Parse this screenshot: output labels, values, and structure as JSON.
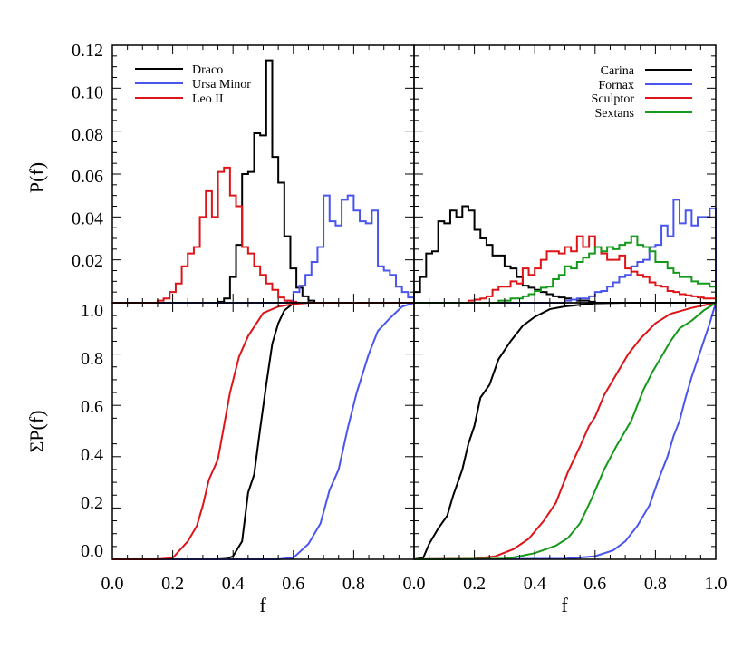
{
  "colors": {
    "black": "#000000",
    "blue": "#4a55ee",
    "red": "#dd1418",
    "green": "#15991a"
  },
  "chart_data": [
    {
      "type": "bar",
      "style": "step-histogram",
      "panel": "top-left",
      "xlabel": "",
      "ylabel": "P(f)",
      "xlim": [
        0,
        1
      ],
      "ylim": [
        0,
        0.12
      ],
      "yticks": [
        "0.02",
        "0.04",
        "0.06",
        "0.08",
        "0.10",
        "0.12"
      ],
      "legend": "top-left",
      "bin_width": 0.02,
      "series": [
        {
          "name": "Draco",
          "color": "#000000",
          "bin_start": 0.35,
          "values": [
            0.0005,
            0.002,
            0.012,
            0.027,
            0.06,
            0.061,
            0.079,
            0.078,
            0.113,
            0.068,
            0.056,
            0.031,
            0.016,
            0.007,
            0.003,
            0.001
          ]
        },
        {
          "name": "Ursa Minor",
          "color": "#4a55ee",
          "bin_start": 0.58,
          "values": [
            0.001,
            0.005,
            0.008,
            0.013,
            0.019,
            0.026,
            0.05,
            0.038,
            0.036,
            0.048,
            0.05,
            0.043,
            0.038,
            0.037,
            0.043,
            0.017,
            0.015,
            0.013,
            0.0075,
            0.005,
            0.0025
          ]
        },
        {
          "name": "Leo II",
          "color": "#dd1418",
          "bin_start": 0.15,
          "values": [
            0.001,
            0.002,
            0.005,
            0.009,
            0.017,
            0.023,
            0.026,
            0.04,
            0.052,
            0.04,
            0.061,
            0.063,
            0.05,
            0.045,
            0.026,
            0.023,
            0.017,
            0.013,
            0.009,
            0.006,
            0.0025,
            0.001,
            0.0005
          ]
        }
      ]
    },
    {
      "type": "bar",
      "style": "step-histogram",
      "panel": "top-right",
      "xlabel": "",
      "ylabel": "",
      "xlim": [
        0,
        1
      ],
      "ylim": [
        0,
        0.12
      ],
      "legend": "top-right",
      "bin_width": 0.02,
      "series": [
        {
          "name": "Carina",
          "color": "#000000",
          "bin_start": 0.0,
          "values": [
            0.005,
            0.012,
            0.023,
            0.024,
            0.038,
            0.037,
            0.043,
            0.04,
            0.045,
            0.043,
            0.034,
            0.03,
            0.027,
            0.022,
            0.022,
            0.017,
            0.016,
            0.012,
            0.008,
            0.007,
            0.006,
            0.005,
            0.004,
            0.003,
            0.0025,
            0.002,
            0.0015,
            0.001,
            0.001,
            0.0005
          ]
        },
        {
          "name": "Fornax",
          "color": "#4a55ee",
          "bin_start": 0.5,
          "values": [
            0.001,
            0.0015,
            0.002,
            0.002,
            0.003,
            0.005,
            0.0055,
            0.0075,
            0.0095,
            0.012,
            0.013,
            0.017,
            0.019,
            0.02,
            0.026,
            0.027,
            0.036,
            0.031,
            0.048,
            0.037,
            0.043,
            0.036,
            0.04,
            0.04,
            0.044
          ]
        },
        {
          "name": "Sculptor",
          "color": "#dd1418",
          "bin_start": 0.18,
          "values": [
            0.001,
            0.0015,
            0.002,
            0.003,
            0.006,
            0.0075,
            0.0075,
            0.01,
            0.009,
            0.016,
            0.013,
            0.016,
            0.02,
            0.024,
            0.024,
            0.023,
            0.026,
            0.024,
            0.031,
            0.026,
            0.031,
            0.026,
            0.023,
            0.02,
            0.02,
            0.022,
            0.016,
            0.0145,
            0.013,
            0.012,
            0.0095,
            0.008,
            0.0075,
            0.0055,
            0.005,
            0.004,
            0.0035,
            0.003,
            0.0025,
            0.002,
            0.002
          ]
        },
        {
          "name": "Sextans",
          "color": "#15991a",
          "bin_start": 0.28,
          "values": [
            0.001,
            0.001,
            0.002,
            0.002,
            0.003,
            0.004,
            0.0055,
            0.007,
            0.0075,
            0.011,
            0.013,
            0.017,
            0.016,
            0.019,
            0.021,
            0.023,
            0.026,
            0.024,
            0.026,
            0.025,
            0.027,
            0.028,
            0.031,
            0.027,
            0.026,
            0.024,
            0.019,
            0.019,
            0.016,
            0.014,
            0.012,
            0.012,
            0.01,
            0.009,
            0.009,
            0.0075
          ]
        }
      ]
    },
    {
      "type": "line",
      "panel": "bottom-left",
      "xlabel": "f",
      "ylabel": "ΣP(f)",
      "xlim": [
        0,
        1
      ],
      "ylim": [
        0,
        1
      ],
      "xticks": [
        "0.0",
        "0.2",
        "0.4",
        "0.6",
        "0.8"
      ],
      "yticks": [
        "0.0",
        "0.2",
        "0.4",
        "0.6",
        "0.8",
        "1.0"
      ],
      "series": [
        {
          "name": "Draco",
          "color": "#000000",
          "x": [
            0.0,
            0.35,
            0.38,
            0.4,
            0.43,
            0.45,
            0.47,
            0.49,
            0.51,
            0.53,
            0.55,
            0.57,
            0.6,
            0.65,
            1.0
          ],
          "y": [
            0,
            0,
            0.002,
            0.012,
            0.07,
            0.26,
            0.33,
            0.51,
            0.68,
            0.84,
            0.92,
            0.97,
            0.998,
            1,
            1
          ]
        },
        {
          "name": "Ursa Minor",
          "color": "#4a55ee",
          "x": [
            0.0,
            0.55,
            0.6,
            0.65,
            0.69,
            0.72,
            0.75,
            0.78,
            0.81,
            0.85,
            0.88,
            0.92,
            0.96,
            1.0
          ],
          "y": [
            0,
            0,
            0.006,
            0.06,
            0.14,
            0.27,
            0.35,
            0.51,
            0.65,
            0.8,
            0.89,
            0.94,
            0.985,
            1
          ]
        },
        {
          "name": "Leo II",
          "color": "#dd1418",
          "x": [
            0.0,
            0.15,
            0.2,
            0.25,
            0.28,
            0.3,
            0.32,
            0.35,
            0.37,
            0.39,
            0.42,
            0.45,
            0.5,
            0.55,
            0.6,
            0.65,
            1.0
          ],
          "y": [
            0,
            0,
            0.005,
            0.07,
            0.13,
            0.21,
            0.31,
            0.39,
            0.52,
            0.65,
            0.79,
            0.87,
            0.96,
            0.985,
            0.995,
            1,
            1
          ]
        }
      ]
    },
    {
      "type": "line",
      "panel": "bottom-right",
      "xlabel": "f",
      "ylabel": "",
      "xlim": [
        0,
        1
      ],
      "ylim": [
        0,
        1
      ],
      "xticks": [
        "0.0",
        "0.2",
        "0.4",
        "0.6",
        "0.8",
        "1.0"
      ],
      "series": [
        {
          "name": "Carina",
          "color": "#000000",
          "x": [
            0.0,
            0.03,
            0.05,
            0.08,
            0.11,
            0.13,
            0.16,
            0.18,
            0.2,
            0.22,
            0.25,
            0.28,
            0.32,
            0.36,
            0.4,
            0.45,
            0.5,
            0.6,
            0.7,
            1.0
          ],
          "y": [
            0,
            0.005,
            0.06,
            0.12,
            0.17,
            0.25,
            0.35,
            0.45,
            0.52,
            0.63,
            0.68,
            0.78,
            0.85,
            0.91,
            0.945,
            0.975,
            0.986,
            0.998,
            1,
            1
          ]
        },
        {
          "name": "Fornax",
          "color": "#4a55ee",
          "x": [
            0.0,
            0.5,
            0.6,
            0.66,
            0.7,
            0.74,
            0.78,
            0.81,
            0.84,
            0.86,
            0.88,
            0.9,
            0.92,
            0.94,
            0.96,
            0.98,
            1.0
          ],
          "y": [
            0,
            0.002,
            0.012,
            0.035,
            0.07,
            0.13,
            0.21,
            0.31,
            0.4,
            0.48,
            0.54,
            0.63,
            0.71,
            0.78,
            0.85,
            0.92,
            1
          ]
        },
        {
          "name": "Sculptor",
          "color": "#dd1418",
          "x": [
            0.0,
            0.2,
            0.27,
            0.33,
            0.38,
            0.43,
            0.47,
            0.51,
            0.55,
            0.58,
            0.6,
            0.63,
            0.67,
            0.71,
            0.75,
            0.8,
            0.85,
            0.92,
            1.0
          ],
          "y": [
            0,
            0.002,
            0.012,
            0.04,
            0.08,
            0.15,
            0.22,
            0.34,
            0.44,
            0.52,
            0.555,
            0.64,
            0.72,
            0.8,
            0.86,
            0.92,
            0.957,
            0.98,
            1
          ]
        },
        {
          "name": "Sextans",
          "color": "#15991a",
          "x": [
            0.0,
            0.3,
            0.35,
            0.4,
            0.47,
            0.51,
            0.55,
            0.59,
            0.63,
            0.67,
            0.72,
            0.76,
            0.79,
            0.82,
            0.85,
            0.88,
            0.92,
            0.96,
            1.0
          ],
          "y": [
            0,
            0.002,
            0.012,
            0.024,
            0.053,
            0.083,
            0.14,
            0.24,
            0.35,
            0.44,
            0.54,
            0.66,
            0.73,
            0.79,
            0.85,
            0.9,
            0.93,
            0.97,
            1
          ]
        }
      ]
    }
  ]
}
